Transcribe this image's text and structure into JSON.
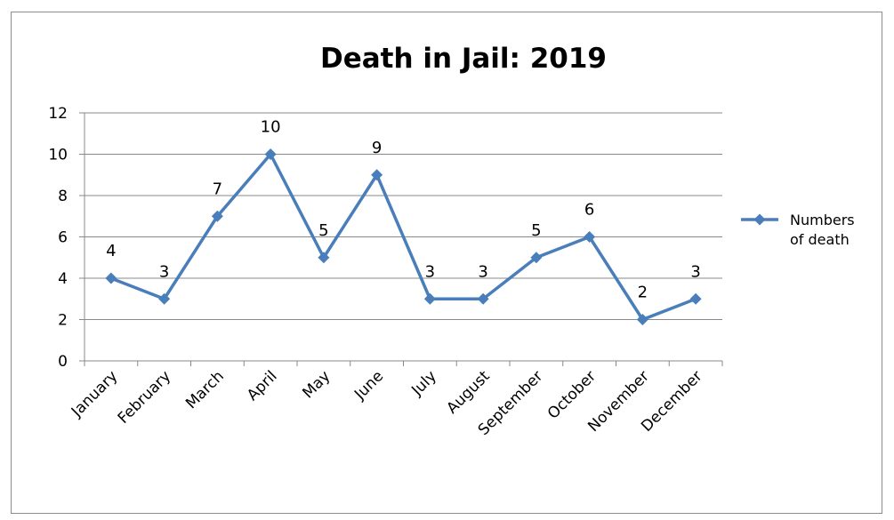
{
  "chart_data": {
    "type": "line",
    "title": "Death in Jail: 2019",
    "xlabel": "",
    "ylabel": "",
    "categories": [
      "January",
      "February",
      "March",
      "April",
      "May",
      "June",
      "July",
      "August",
      "September",
      "October",
      "November",
      "December"
    ],
    "series": [
      {
        "name": "Numbers of death",
        "values": [
          4,
          3,
          7,
          10,
          5,
          9,
          3,
          3,
          5,
          6,
          2,
          3
        ],
        "color": "#4a7ebb"
      }
    ],
    "ylim": [
      0,
      12
    ],
    "yticks": [
      "0",
      "2",
      "4",
      "6",
      "8",
      "10",
      "12"
    ],
    "grid": true,
    "legend": {
      "position": "right",
      "lines": [
        "Numbers",
        "of death"
      ]
    },
    "data_labels": [
      "4",
      "3",
      "7",
      "10",
      "5",
      "9",
      "3",
      "3",
      "5",
      "6",
      "2",
      "3"
    ]
  }
}
